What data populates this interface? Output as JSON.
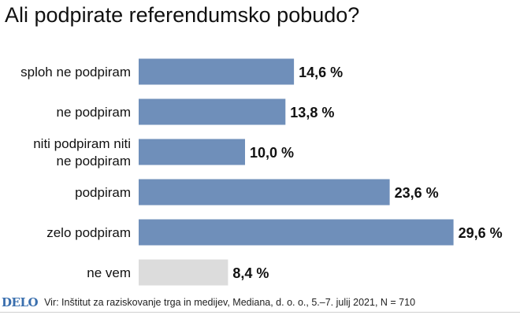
{
  "header": {
    "title": "Ali podpirate referendumsko pobudo?"
  },
  "footer": {
    "logo": "DELO",
    "source": "Vir: Inštitut za raziskovanje trga in medijev, Mediana, d. o. o., 5.–7. julij 2021, N = 710"
  },
  "chart_data": {
    "type": "bar",
    "orientation": "horizontal",
    "categories": [
      "sploh ne podpiram",
      "ne podpiram",
      "niti podpiram niti ne podpiram",
      "podpiram",
      "zelo podpiram",
      "ne vem"
    ],
    "category_lines": [
      [
        "sploh ne podpiram"
      ],
      [
        "ne podpiram"
      ],
      [
        "niti podpiram niti",
        "ne podpiram"
      ],
      [
        "podpiram"
      ],
      [
        "zelo podpiram"
      ],
      [
        "ne vem"
      ]
    ],
    "values": [
      14.6,
      13.8,
      10.0,
      23.6,
      29.6,
      8.4
    ],
    "value_labels": [
      "14,6 %",
      "13,8 %",
      "10,0 %",
      "23,6 %",
      "29,6 %",
      "8,4 %"
    ],
    "bar_colors": [
      "#6f8fba",
      "#6f8fba",
      "#6f8fba",
      "#6f8fba",
      "#6f8fba",
      "#dcdcdc"
    ],
    "xlim": [
      0,
      35
    ],
    "grid": false,
    "legend": "none",
    "title": "Ali podpirate referendumsko pobudo?"
  }
}
